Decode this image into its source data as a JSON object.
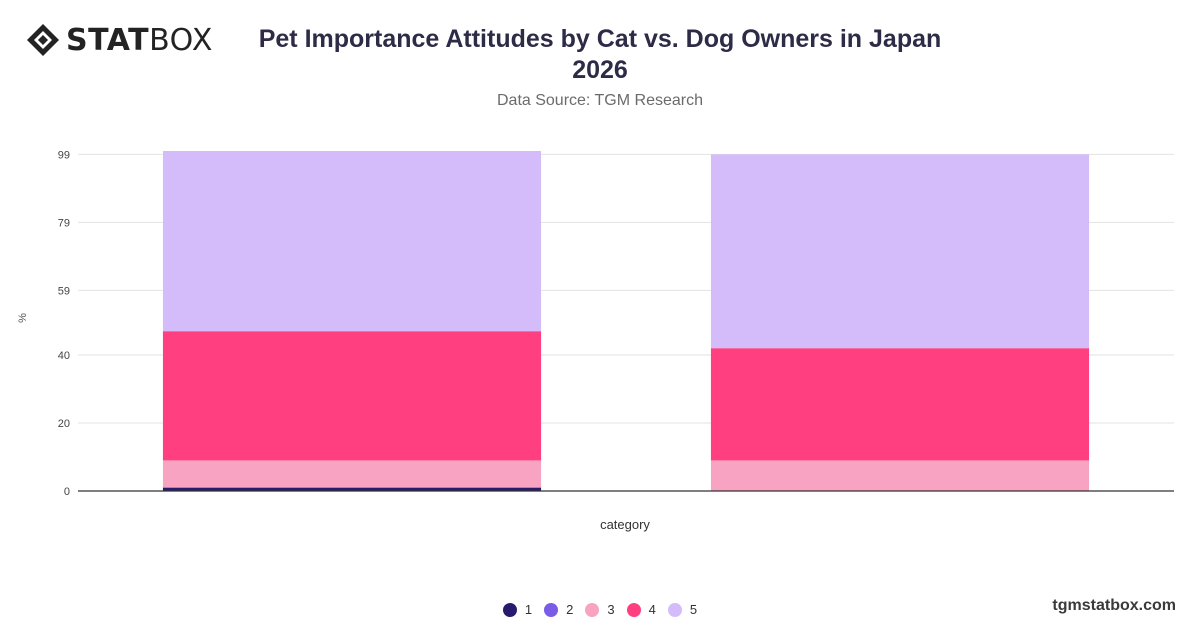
{
  "brand": {
    "logo_bold": "STAT",
    "logo_light": "BOX",
    "footer": "tgmstatbox.com"
  },
  "header": {
    "title": "Pet Importance Attitudes by Cat vs. Dog Owners in Japan 2026",
    "subtitle": "Data Source: TGM Research"
  },
  "colors": {
    "s1": "#2a1a6e",
    "s2": "#7b5ce6",
    "s3": "#f8a3c2",
    "s4": "#ff3f7f",
    "s5": "#d4bbfa",
    "grid": "#e3e3e3",
    "axis": "#333333"
  },
  "chart_data": {
    "type": "bar",
    "stacked": true,
    "categories": [
      "",
      ""
    ],
    "xlabel": "category",
    "ylabel": "%",
    "ylim": [
      0,
      100
    ],
    "yticks": [
      0,
      20,
      40,
      59,
      79,
      99
    ],
    "grid": true,
    "legend_position": "bottom",
    "series": [
      {
        "name": "1",
        "values": [
          1,
          0
        ]
      },
      {
        "name": "2",
        "values": [
          0,
          0
        ]
      },
      {
        "name": "3",
        "values": [
          8,
          9
        ]
      },
      {
        "name": "4",
        "values": [
          38,
          33
        ]
      },
      {
        "name": "5",
        "values": [
          53,
          57
        ]
      }
    ]
  }
}
